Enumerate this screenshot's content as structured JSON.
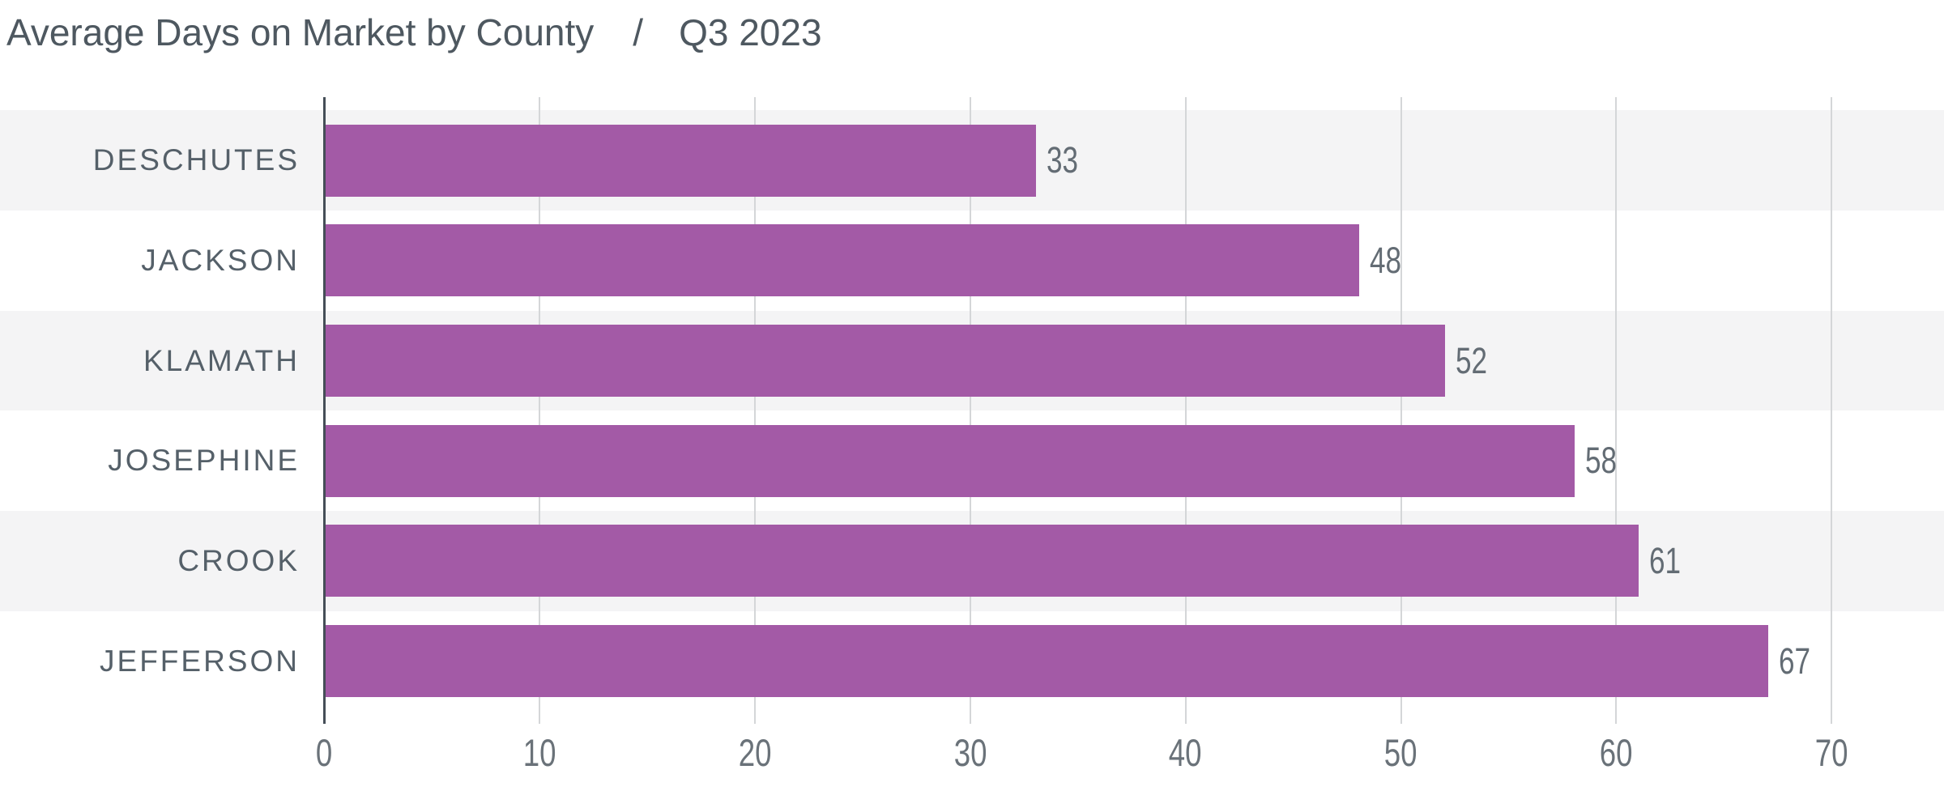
{
  "header": {
    "title": "Average Days on Market by County",
    "separator": "/",
    "period": "Q3 2023"
  },
  "chart_data": {
    "type": "bar",
    "orientation": "horizontal",
    "title": "Average Days on Market by County",
    "subtitle": "Q3 2023",
    "categories": [
      "DESCHUTES",
      "JACKSON",
      "KLAMATH",
      "JOSEPHINE",
      "CROOK",
      "JEFFERSON"
    ],
    "values": [
      33,
      48,
      52,
      58,
      61,
      67
    ],
    "value_labels": [
      "33",
      "48",
      "52",
      "58",
      "61",
      "67"
    ],
    "xticks": [
      0,
      10,
      20,
      30,
      40,
      50,
      60,
      70
    ],
    "xlabel": "",
    "ylabel": "",
    "xlim": [
      0,
      75.2
    ],
    "grid": true,
    "gridlines": "vertical-at-ticks",
    "legend": false,
    "row_striping": "odd-rows-shaded"
  },
  "colors": {
    "background": "#ffffff",
    "bar": "#a35aa6",
    "row_band": "#f4f4f5",
    "gridline": "#d4d6d8",
    "axis_line": "#454e57",
    "title_text": "#4e5860",
    "category_text": "#556069",
    "value_text": "#636c74",
    "tick_text": "#6a7279"
  }
}
